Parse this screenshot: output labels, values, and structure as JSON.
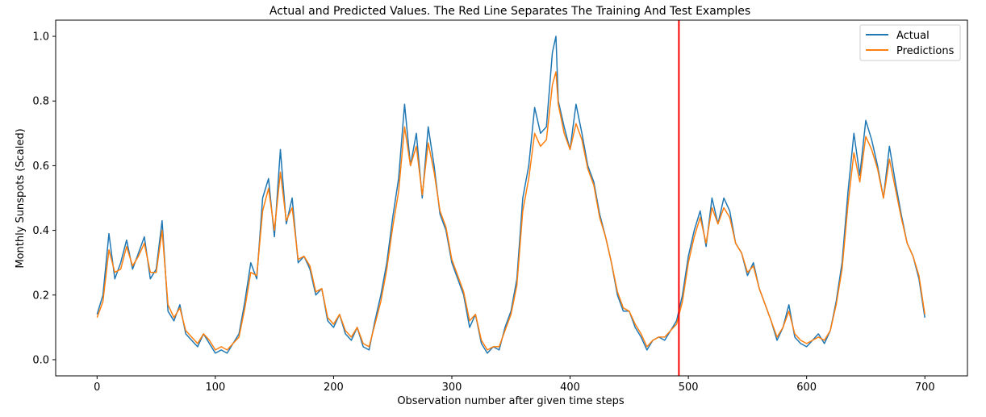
{
  "chart_data": {
    "type": "line",
    "title": "Actual and Predicted Values. The Red Line Separates The Training And Test Examples",
    "xlabel": "Observation number after given time steps",
    "ylabel": "Monthly Sunspots (Scaled)",
    "xlim": [
      -35,
      736
    ],
    "ylim": [
      -0.05,
      1.05
    ],
    "xticks": [
      0,
      100,
      200,
      300,
      400,
      500,
      600,
      700
    ],
    "xtick_labels": [
      "0",
      "100",
      "200",
      "300",
      "400",
      "500",
      "600",
      "700"
    ],
    "yticks": [
      0.0,
      0.2,
      0.4,
      0.6,
      0.8,
      1.0
    ],
    "ytick_labels": [
      "0.0",
      "0.2",
      "0.4",
      "0.6",
      "0.8",
      "1.0"
    ],
    "grid": false,
    "legend_position": "top-right",
    "split_line": {
      "x": 492,
      "color": "#ff0000"
    },
    "colors": {
      "actual": "#1f77b4",
      "predictions": "#ff7f0e"
    },
    "series": [
      {
        "name": "Actual",
        "x": [
          0,
          5,
          10,
          15,
          20,
          25,
          30,
          35,
          40,
          45,
          50,
          55,
          60,
          65,
          70,
          75,
          80,
          85,
          90,
          95,
          100,
          105,
          110,
          115,
          120,
          125,
          130,
          135,
          140,
          145,
          150,
          155,
          160,
          165,
          170,
          175,
          180,
          185,
          190,
          195,
          200,
          205,
          210,
          215,
          220,
          225,
          230,
          235,
          240,
          245,
          250,
          255,
          260,
          265,
          270,
          275,
          280,
          285,
          290,
          295,
          300,
          305,
          310,
          315,
          320,
          325,
          330,
          335,
          340,
          345,
          350,
          355,
          360,
          365,
          370,
          375,
          380,
          385,
          388,
          390,
          395,
          400,
          405,
          410,
          415,
          420,
          425,
          430,
          435,
          440,
          445,
          450,
          455,
          460,
          465,
          470,
          475,
          480,
          485,
          490,
          495,
          500,
          505,
          510,
          515,
          520,
          525,
          530,
          535,
          540,
          545,
          550,
          555,
          560,
          565,
          570,
          575,
          580,
          585,
          590,
          595,
          600,
          605,
          610,
          615,
          620,
          625,
          630,
          635,
          640,
          645,
          650,
          655,
          660,
          665,
          670,
          675,
          680,
          685,
          690,
          695,
          700
        ],
        "values": [
          0.14,
          0.2,
          0.39,
          0.25,
          0.3,
          0.37,
          0.28,
          0.33,
          0.38,
          0.25,
          0.28,
          0.43,
          0.15,
          0.12,
          0.17,
          0.08,
          0.06,
          0.04,
          0.08,
          0.05,
          0.02,
          0.03,
          0.02,
          0.05,
          0.08,
          0.18,
          0.3,
          0.25,
          0.5,
          0.56,
          0.38,
          0.65,
          0.42,
          0.5,
          0.3,
          0.32,
          0.28,
          0.2,
          0.22,
          0.12,
          0.1,
          0.14,
          0.08,
          0.06,
          0.1,
          0.04,
          0.03,
          0.12,
          0.2,
          0.3,
          0.44,
          0.56,
          0.79,
          0.6,
          0.7,
          0.5,
          0.72,
          0.6,
          0.45,
          0.4,
          0.3,
          0.25,
          0.2,
          0.1,
          0.14,
          0.05,
          0.02,
          0.04,
          0.03,
          0.1,
          0.15,
          0.25,
          0.5,
          0.6,
          0.78,
          0.7,
          0.72,
          0.95,
          1.0,
          0.8,
          0.72,
          0.65,
          0.79,
          0.7,
          0.6,
          0.55,
          0.45,
          0.38,
          0.3,
          0.2,
          0.15,
          0.15,
          0.1,
          0.07,
          0.03,
          0.06,
          0.07,
          0.06,
          0.09,
          0.12,
          0.2,
          0.32,
          0.4,
          0.46,
          0.35,
          0.5,
          0.42,
          0.5,
          0.46,
          0.36,
          0.33,
          0.26,
          0.3,
          0.22,
          0.17,
          0.12,
          0.06,
          0.1,
          0.17,
          0.07,
          0.05,
          0.04,
          0.06,
          0.08,
          0.05,
          0.09,
          0.18,
          0.3,
          0.52,
          0.7,
          0.57,
          0.74,
          0.68,
          0.6,
          0.5,
          0.66,
          0.55,
          0.45,
          0.36,
          0.32,
          0.25,
          0.13
        ]
      },
      {
        "name": "Predictions",
        "x": [
          0,
          5,
          10,
          15,
          20,
          25,
          30,
          35,
          40,
          45,
          50,
          55,
          60,
          65,
          70,
          75,
          80,
          85,
          90,
          95,
          100,
          105,
          110,
          115,
          120,
          125,
          130,
          135,
          140,
          145,
          150,
          155,
          160,
          165,
          170,
          175,
          180,
          185,
          190,
          195,
          200,
          205,
          210,
          215,
          220,
          225,
          230,
          235,
          240,
          245,
          250,
          255,
          260,
          265,
          270,
          275,
          280,
          285,
          290,
          295,
          300,
          305,
          310,
          315,
          320,
          325,
          330,
          335,
          340,
          345,
          350,
          355,
          360,
          365,
          370,
          375,
          380,
          385,
          388,
          390,
          395,
          400,
          405,
          410,
          415,
          420,
          425,
          430,
          435,
          440,
          445,
          450,
          455,
          460,
          465,
          470,
          475,
          480,
          485,
          490,
          495,
          500,
          505,
          510,
          515,
          520,
          525,
          530,
          535,
          540,
          545,
          550,
          555,
          560,
          565,
          570,
          575,
          580,
          585,
          590,
          595,
          600,
          605,
          610,
          615,
          620,
          625,
          630,
          635,
          640,
          645,
          650,
          655,
          660,
          665,
          670,
          675,
          680,
          685,
          690,
          695,
          700
        ],
        "values": [
          0.13,
          0.18,
          0.34,
          0.27,
          0.28,
          0.35,
          0.29,
          0.32,
          0.36,
          0.27,
          0.27,
          0.4,
          0.17,
          0.13,
          0.16,
          0.09,
          0.07,
          0.05,
          0.08,
          0.06,
          0.03,
          0.04,
          0.03,
          0.05,
          0.07,
          0.16,
          0.27,
          0.26,
          0.46,
          0.53,
          0.4,
          0.58,
          0.43,
          0.47,
          0.31,
          0.32,
          0.29,
          0.21,
          0.22,
          0.13,
          0.11,
          0.14,
          0.09,
          0.07,
          0.1,
          0.05,
          0.04,
          0.11,
          0.18,
          0.28,
          0.41,
          0.52,
          0.72,
          0.6,
          0.66,
          0.51,
          0.67,
          0.58,
          0.46,
          0.41,
          0.31,
          0.26,
          0.21,
          0.12,
          0.14,
          0.06,
          0.03,
          0.04,
          0.04,
          0.09,
          0.14,
          0.23,
          0.46,
          0.56,
          0.7,
          0.66,
          0.68,
          0.85,
          0.89,
          0.79,
          0.7,
          0.65,
          0.73,
          0.68,
          0.59,
          0.54,
          0.44,
          0.38,
          0.3,
          0.21,
          0.16,
          0.15,
          0.11,
          0.08,
          0.04,
          0.06,
          0.07,
          0.07,
          0.09,
          0.11,
          0.18,
          0.3,
          0.38,
          0.44,
          0.36,
          0.47,
          0.42,
          0.47,
          0.44,
          0.36,
          0.33,
          0.27,
          0.29,
          0.22,
          0.17,
          0.12,
          0.07,
          0.1,
          0.15,
          0.08,
          0.06,
          0.05,
          0.06,
          0.07,
          0.06,
          0.09,
          0.17,
          0.28,
          0.48,
          0.64,
          0.55,
          0.69,
          0.65,
          0.59,
          0.5,
          0.62,
          0.53,
          0.44,
          0.36,
          0.32,
          0.26,
          0.14
        ]
      }
    ]
  }
}
